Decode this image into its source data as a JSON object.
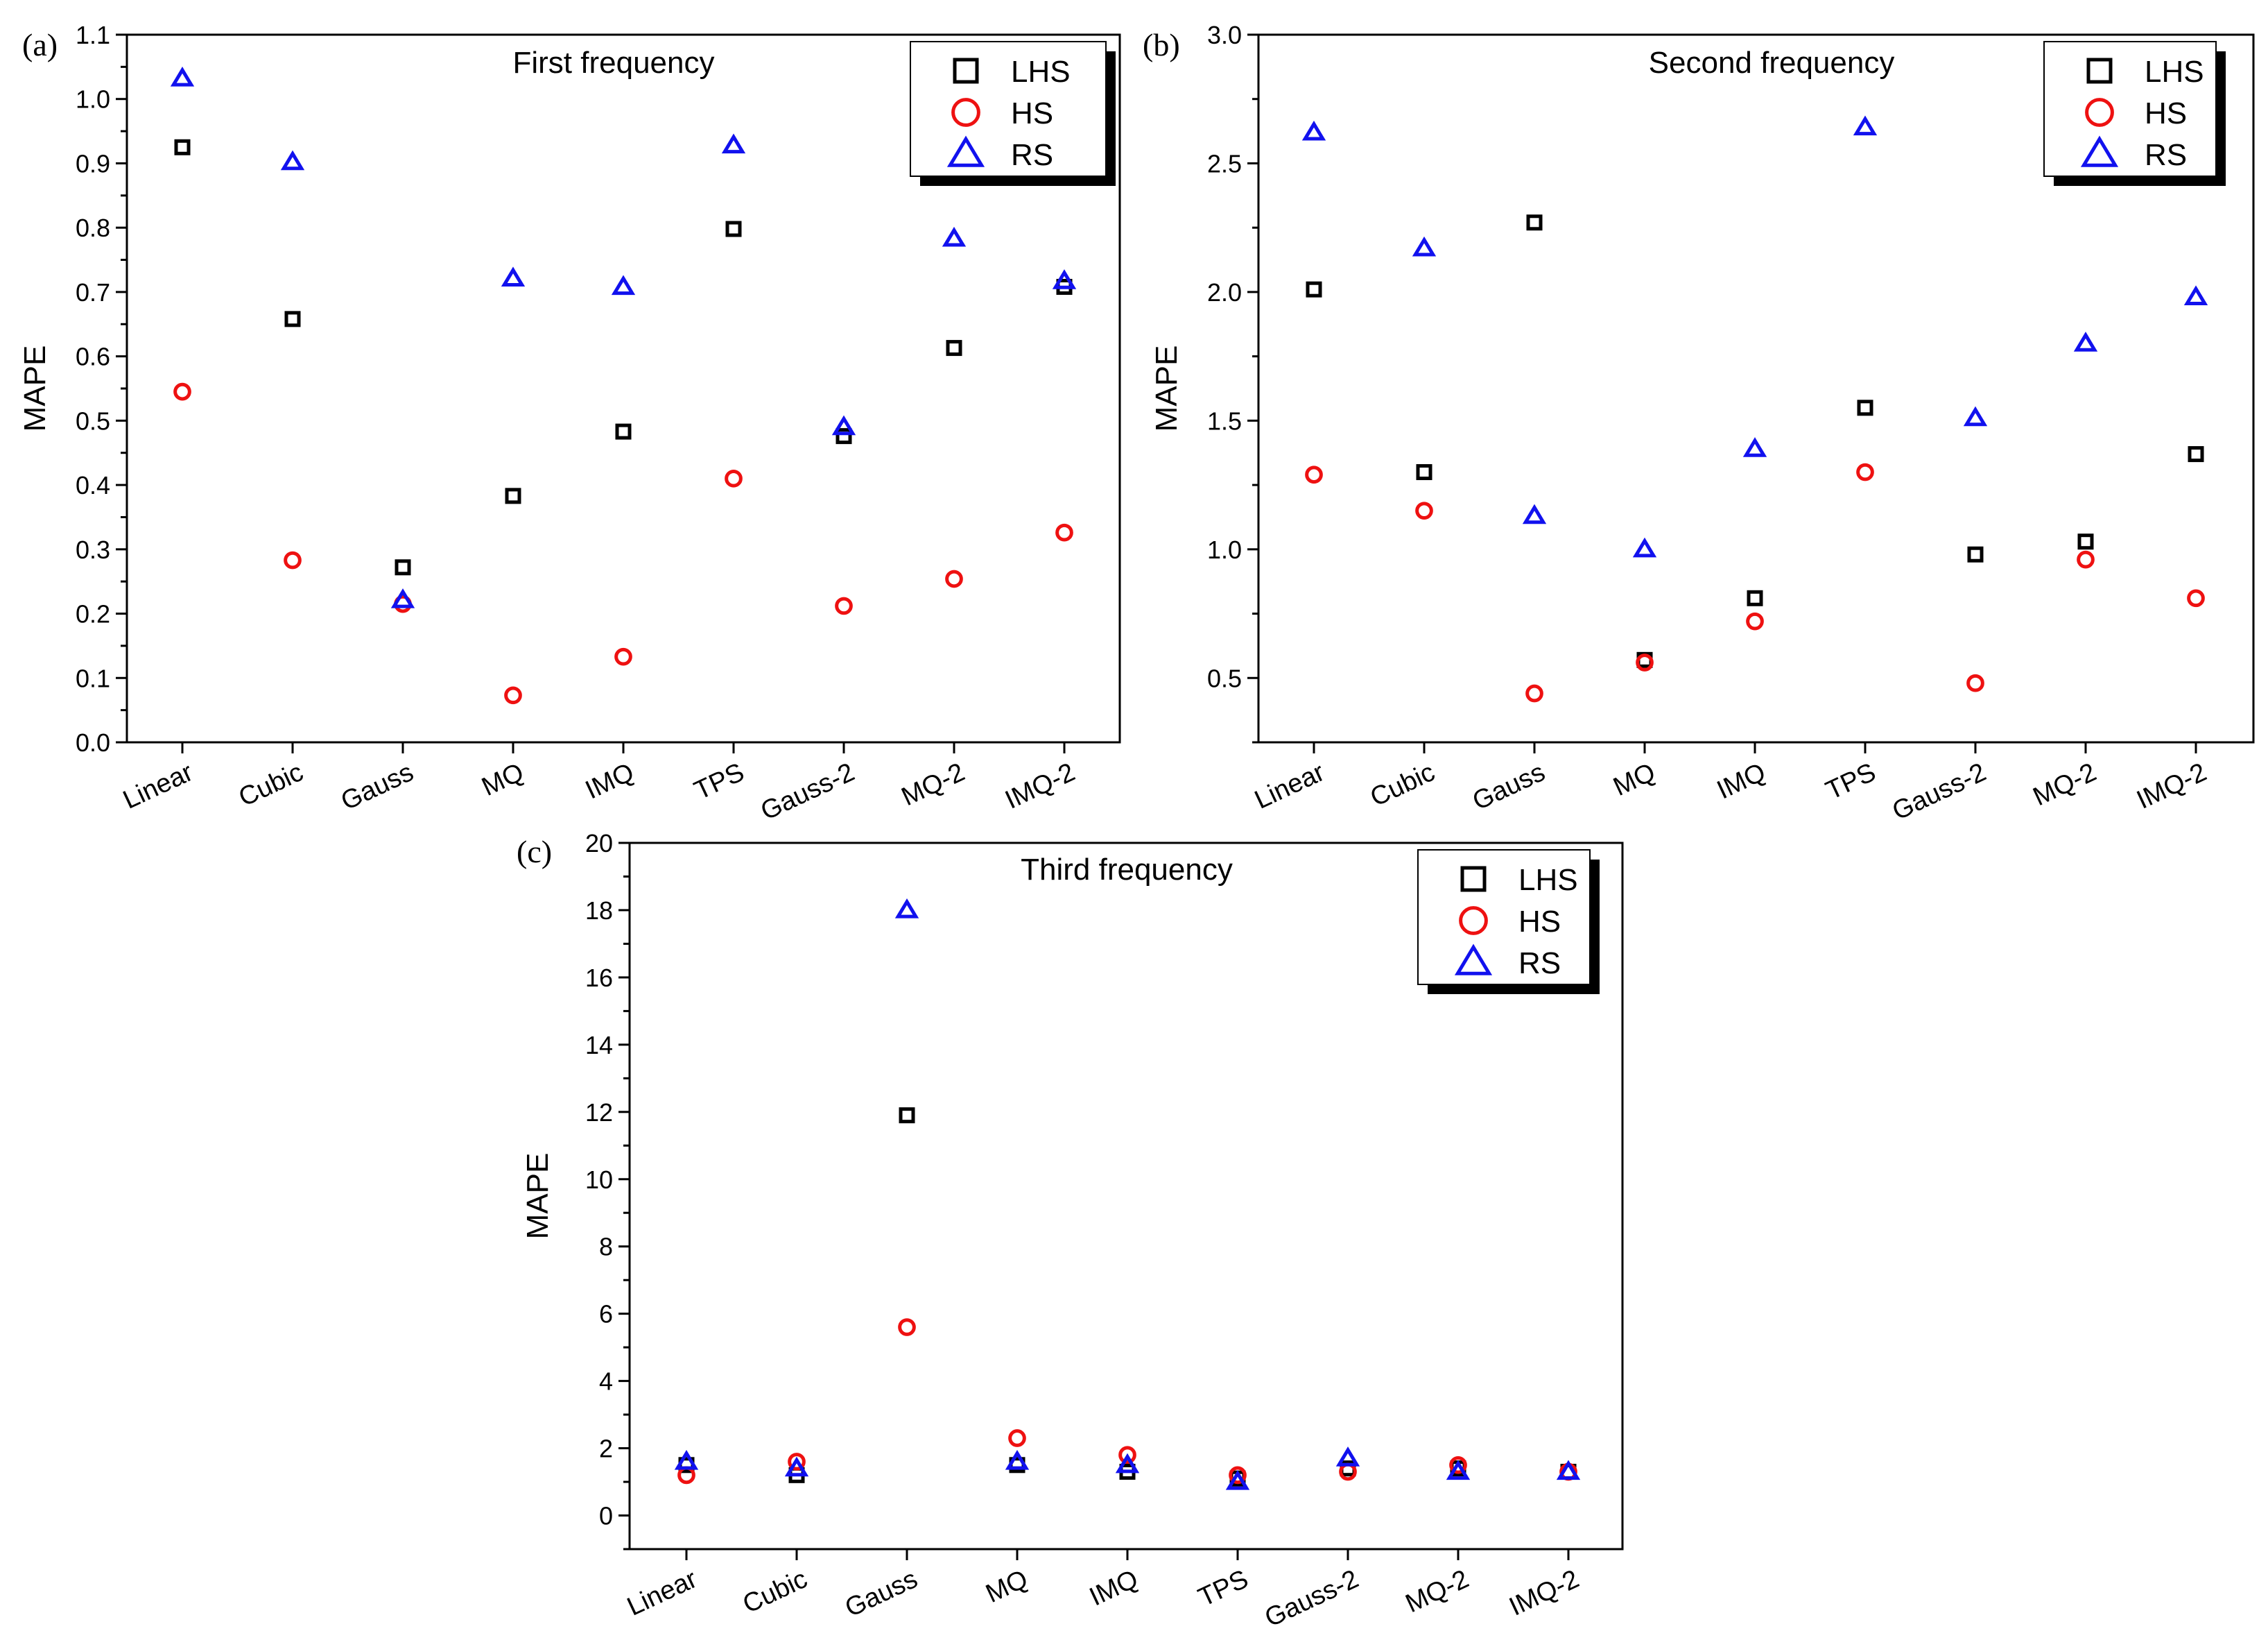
{
  "colors": {
    "LHS": "#000000",
    "HS": "#ee1111",
    "RS": "#1111ee"
  },
  "chart_data": [
    {
      "type": "scatter",
      "panel_label": "(a)",
      "title": "First frequency",
      "xlabel": "",
      "ylabel": "MAPE",
      "categories": [
        "Linear",
        "Cubic",
        "Gauss",
        "MQ",
        "IMQ",
        "TPS",
        "Gauss-2",
        "MQ-2",
        "IMQ-2"
      ],
      "ylim": [
        0.0,
        1.1
      ],
      "yticks": [
        0.0,
        0.1,
        0.2,
        0.3,
        0.4,
        0.5,
        0.6,
        0.7,
        0.8,
        0.9,
        1.0,
        1.1
      ],
      "ytick_labels": [
        "0.0",
        "0.1",
        "0.2",
        "0.3",
        "0.4",
        "0.5",
        "0.6",
        "0.7",
        "0.8",
        "0.9",
        "1.0",
        "1.1"
      ],
      "legend": [
        "LHS",
        "HS",
        "RS"
      ],
      "legend_position": "top-right",
      "series": [
        {
          "name": "LHS",
          "marker": "square",
          "values": [
            0.925,
            0.658,
            0.272,
            0.383,
            0.483,
            0.798,
            0.476,
            0.613,
            0.708
          ]
        },
        {
          "name": "HS",
          "marker": "circle",
          "values": [
            0.545,
            0.283,
            0.215,
            0.073,
            0.133,
            0.41,
            0.212,
            0.254,
            0.326
          ]
        },
        {
          "name": "RS",
          "marker": "triangle",
          "values": [
            1.032,
            0.902,
            0.221,
            0.721,
            0.708,
            0.928,
            0.49,
            0.783,
            0.717
          ]
        }
      ]
    },
    {
      "type": "scatter",
      "panel_label": "(b)",
      "title": "Second frequency",
      "xlabel": "",
      "ylabel": "MAPE",
      "categories": [
        "Linear",
        "Cubic",
        "Gauss",
        "MQ",
        "IMQ",
        "TPS",
        "Gauss-2",
        "MQ-2",
        "IMQ-2"
      ],
      "ylim": [
        0.25,
        3.0
      ],
      "yticks": [
        0.5,
        1.0,
        1.5,
        2.0,
        2.5,
        3.0
      ],
      "ytick_labels": [
        "0.5",
        "1.0",
        "1.5",
        "2.0",
        "2.5",
        "3.0"
      ],
      "legend": [
        "LHS",
        "HS",
        "RS"
      ],
      "legend_position": "top-right",
      "series": [
        {
          "name": "LHS",
          "marker": "square",
          "values": [
            2.01,
            1.3,
            2.27,
            0.57,
            0.81,
            1.55,
            0.98,
            1.03,
            1.37
          ]
        },
        {
          "name": "HS",
          "marker": "circle",
          "values": [
            1.29,
            1.15,
            0.44,
            0.56,
            0.72,
            1.3,
            0.48,
            0.96,
            0.81
          ]
        },
        {
          "name": "RS",
          "marker": "triangle",
          "values": [
            2.62,
            2.17,
            1.13,
            1.0,
            1.39,
            2.64,
            1.51,
            1.8,
            1.98
          ]
        }
      ]
    },
    {
      "type": "scatter",
      "panel_label": "(c)",
      "title": "Third frequency",
      "xlabel": "",
      "ylabel": "MAPE",
      "categories": [
        "Linear",
        "Cubic",
        "Gauss",
        "MQ",
        "IMQ",
        "TPS",
        "Gauss-2",
        "MQ-2",
        "IMQ-2"
      ],
      "ylim": [
        -1,
        20
      ],
      "yticks": [
        0,
        2,
        4,
        6,
        8,
        10,
        12,
        14,
        16,
        18,
        20
      ],
      "ytick_labels": [
        "0",
        "2",
        "4",
        "6",
        "8",
        "10",
        "12",
        "14",
        "16",
        "18",
        "20"
      ],
      "legend": [
        "LHS",
        "HS",
        "RS"
      ],
      "legend_position": "top-right",
      "series": [
        {
          "name": "LHS",
          "marker": "square",
          "values": [
            1.5,
            1.2,
            11.9,
            1.5,
            1.3,
            1.1,
            1.4,
            1.4,
            1.3
          ]
        },
        {
          "name": "HS",
          "marker": "circle",
          "values": [
            1.2,
            1.6,
            5.6,
            2.3,
            1.8,
            1.2,
            1.3,
            1.5,
            1.3
          ]
        },
        {
          "name": "RS",
          "marker": "triangle",
          "values": [
            1.6,
            1.4,
            18.0,
            1.6,
            1.5,
            1.0,
            1.7,
            1.3,
            1.3
          ]
        }
      ]
    }
  ]
}
